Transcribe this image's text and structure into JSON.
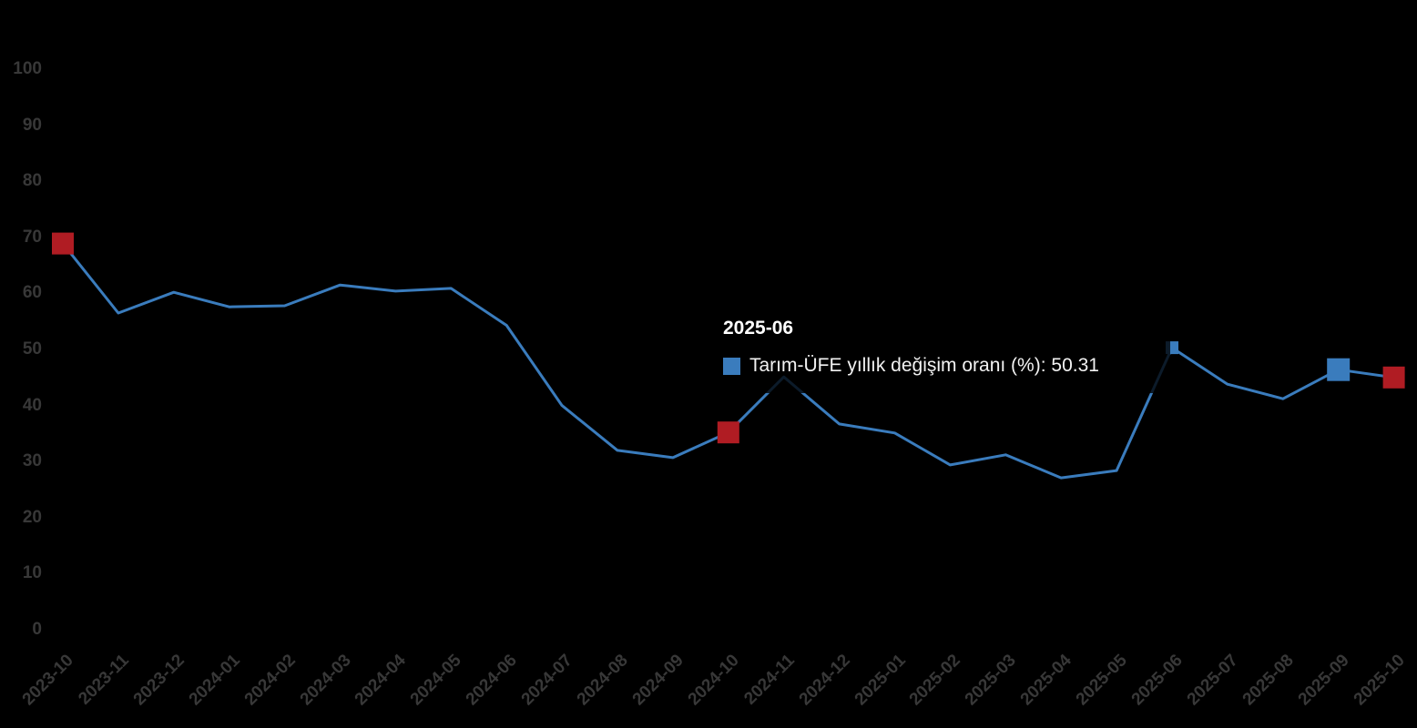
{
  "colors": {
    "background": "#000000",
    "line": "#3a7cbd",
    "marker_blue": "#3a7cbd",
    "marker_red": "#b01c23",
    "axis_label": "#383838",
    "tooltip_title": "#ffffff",
    "tooltip_text": "#f2f2f2"
  },
  "chart_data": {
    "type": "line",
    "title": "",
    "xlabel": "",
    "ylabel": "",
    "grid": false,
    "legend_position": "none",
    "ylim": [
      0,
      100
    ],
    "yticks": [
      0,
      10,
      20,
      30,
      40,
      50,
      60,
      70,
      80,
      90,
      100
    ],
    "categories": [
      "2023-10",
      "2023-11",
      "2023-12",
      "2024-01",
      "2024-02",
      "2024-03",
      "2024-04",
      "2024-05",
      "2024-06",
      "2024-07",
      "2024-08",
      "2024-09",
      "2024-10",
      "2024-11",
      "2024-12",
      "2025-01",
      "2025-02",
      "2025-03",
      "2025-04",
      "2025-05",
      "2025-06",
      "2025-07",
      "2025-08",
      "2025-09",
      "2025-10"
    ],
    "series": [
      {
        "name": "Tarım-ÜFE yıllık değişim oranı (%)",
        "values": [
          68.9,
          56.5,
          60.2,
          57.6,
          57.8,
          61.5,
          60.4,
          60.9,
          54.3,
          40.0,
          32.0,
          30.7,
          35.2,
          45.1,
          36.7,
          35.1,
          29.4,
          31.2,
          27.1,
          28.4,
          50.31,
          43.8,
          41.2,
          46.4,
          45.0
        ]
      }
    ],
    "markers": [
      {
        "category": "2023-10",
        "index": 0,
        "shape": "square",
        "color": "#b01c23",
        "size": 24
      },
      {
        "category": "2024-10",
        "index": 12,
        "shape": "square",
        "color": "#b01c23",
        "size": 24
      },
      {
        "category": "2025-06",
        "index": 20,
        "shape": "square",
        "color": "#3a7cbd",
        "size": 14
      },
      {
        "category": "2025-09",
        "index": 23,
        "shape": "square",
        "color": "#3a7cbd",
        "size": 25
      },
      {
        "category": "2025-10",
        "index": 24,
        "shape": "square",
        "color": "#b01c23",
        "size": 24
      }
    ]
  },
  "tooltip": {
    "title": "2025-06",
    "series_label": "Tarım-ÜFE yıllık değişim oranı (%)",
    "value": "50.31",
    "text": "Tarım-ÜFE yıllık değişim oranı (%): 50.31",
    "swatch_color": "#3a7cbd"
  }
}
